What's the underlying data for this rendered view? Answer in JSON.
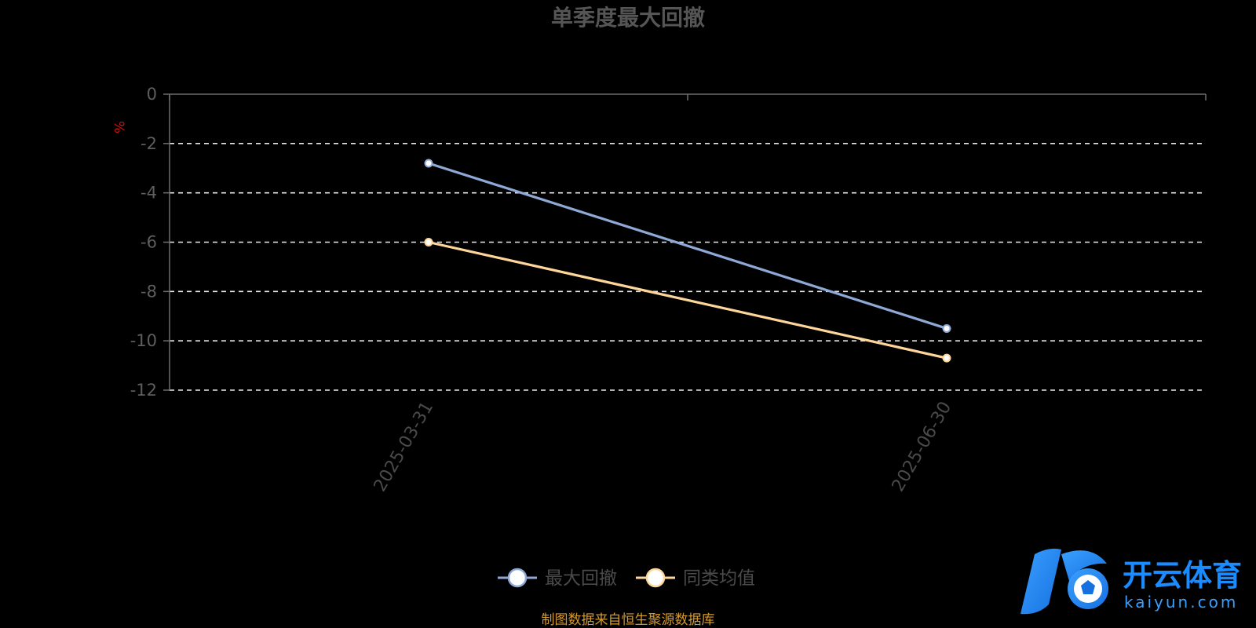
{
  "chart_data": {
    "type": "line",
    "title": "单季度最大回撤",
    "ylabel": "%",
    "xlabel": "",
    "categories": [
      "2025-03-31",
      "2025-06-30"
    ],
    "ylim": [
      -12,
      0
    ],
    "yticks": [
      0,
      -2,
      -4,
      -6,
      -8,
      -10,
      -12
    ],
    "grid": true,
    "legend_position": "bottom",
    "series": [
      {
        "name": "最大回撤",
        "values": [
          -2.8,
          -9.5
        ],
        "color": "#8fa9d6"
      },
      {
        "name": "同类均值",
        "values": [
          -6.0,
          -10.7
        ],
        "color": "#ffd699"
      }
    ],
    "source_note": "制图数据来自恒生聚源数据库"
  },
  "watermark": {
    "brand_text": "开云体育",
    "brand_url_text": "kaiyun.com",
    "logo_letter": "K",
    "logo_color_start": "#1a8cff",
    "logo_color_end": "#4fd1ff"
  }
}
